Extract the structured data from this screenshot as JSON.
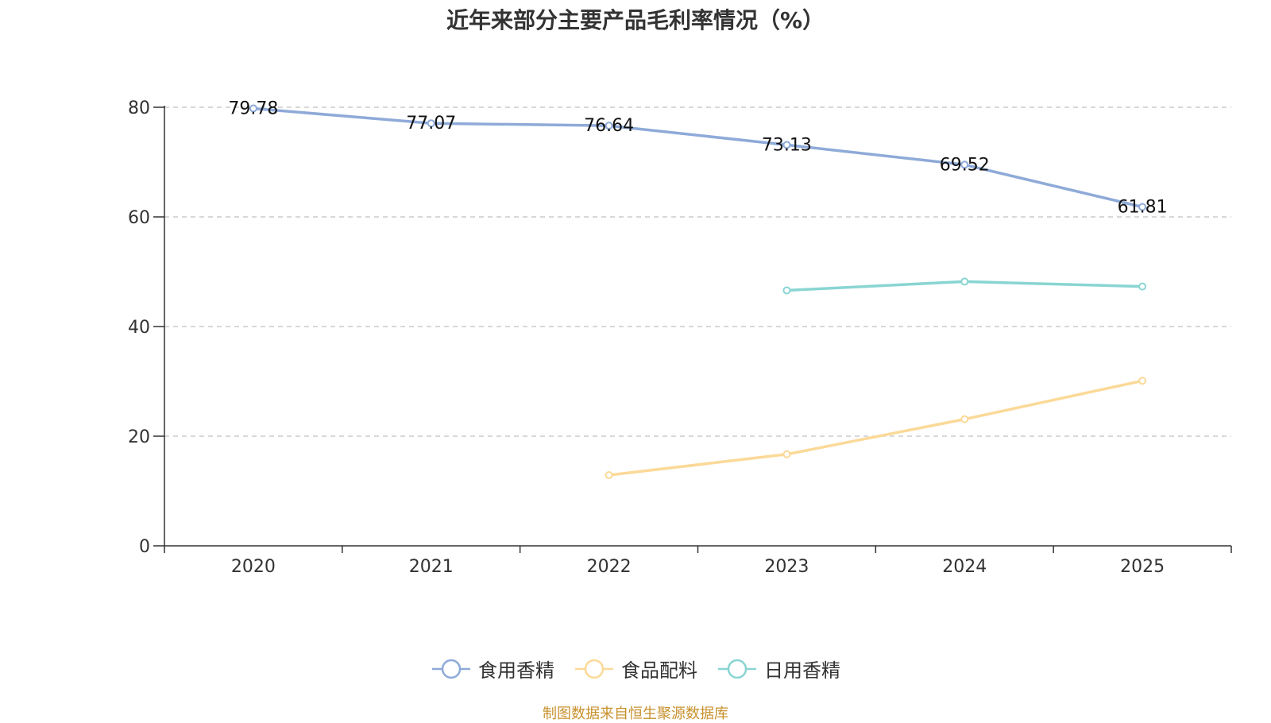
{
  "chart_data": {
    "type": "line",
    "title": "近年来部分主要产品毛利率情况（%）",
    "categories": [
      "2020",
      "2021",
      "2022",
      "2023",
      "2024",
      "2025"
    ],
    "ylim": [
      0,
      80
    ],
    "yticks": [
      0,
      20,
      40,
      60,
      80
    ],
    "grid": true,
    "legend_position": "bottom-center",
    "series": [
      {
        "name": "食用香精",
        "color": "#8eaad8",
        "values": [
          79.78,
          77.07,
          76.64,
          73.13,
          69.52,
          61.81
        ],
        "labels": [
          "79.78",
          "77.07",
          "76.64",
          "73.13",
          "69.52",
          "61.81"
        ],
        "show_labels": true
      },
      {
        "name": "食品配料",
        "color": "#fbd998",
        "values": [
          null,
          null,
          12.9,
          16.7,
          23.1,
          30.1
        ],
        "show_labels": false
      },
      {
        "name": "日用香精",
        "color": "#89d5d2",
        "values": [
          null,
          null,
          null,
          46.6,
          48.2,
          47.3
        ],
        "show_labels": false
      }
    ]
  },
  "source": "制图数据来自恒生聚源数据库"
}
